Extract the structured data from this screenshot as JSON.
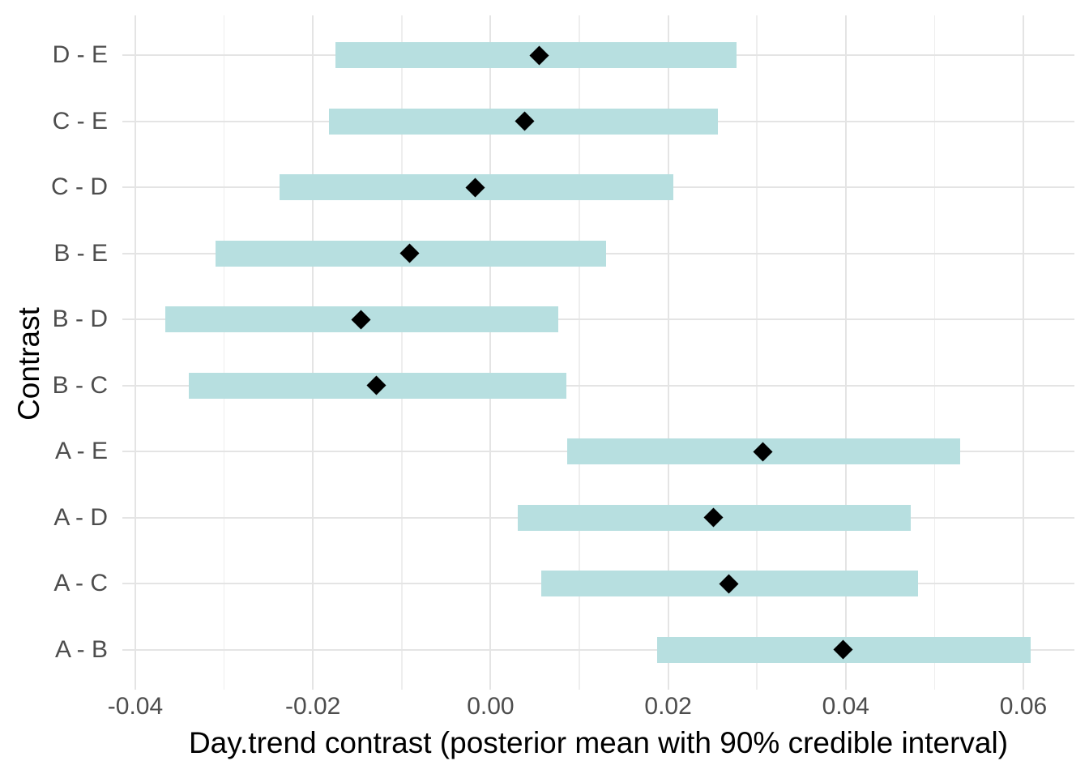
{
  "chart_data": {
    "type": "bar",
    "subtype": "horizontal-interval-pointrange",
    "title": "",
    "xlabel": "Day.trend contrast (posterior mean with 90% credible interval)",
    "ylabel": "Contrast",
    "legend": "none",
    "grid": "on",
    "xlim": [
      -0.0455,
      0.0656
    ],
    "categories": [
      "D - E",
      "C - E",
      "C - D",
      "B - E",
      "B - D",
      "B - C",
      "A - E",
      "A - D",
      "A - C",
      "A - B"
    ],
    "rows": [
      {
        "contrast": "D - E",
        "lower": -0.0175,
        "mean": 0.0055,
        "upper": 0.0277
      },
      {
        "contrast": "C - E",
        "lower": -0.0182,
        "mean": 0.0038,
        "upper": 0.0256
      },
      {
        "contrast": "C - D",
        "lower": -0.0238,
        "mean": -0.0017,
        "upper": 0.0206
      },
      {
        "contrast": "B - E",
        "lower": -0.031,
        "mean": -0.0091,
        "upper": 0.013
      },
      {
        "contrast": "B - D",
        "lower": -0.0366,
        "mean": -0.0146,
        "upper": 0.0076
      },
      {
        "contrast": "B - C",
        "lower": -0.034,
        "mean": -0.0129,
        "upper": 0.0085
      },
      {
        "contrast": "A - E",
        "lower": 0.0086,
        "mean": 0.0307,
        "upper": 0.0529
      },
      {
        "contrast": "A - D",
        "lower": 0.0031,
        "mean": 0.0251,
        "upper": 0.0473
      },
      {
        "contrast": "A - C",
        "lower": 0.0057,
        "mean": 0.0268,
        "upper": 0.0481
      },
      {
        "contrast": "A - B",
        "lower": 0.0188,
        "mean": 0.0397,
        "upper": 0.0608
      }
    ],
    "x_major_ticks": [
      {
        "value": -0.04,
        "label": "-0.04"
      },
      {
        "value": -0.02,
        "label": "-0.02"
      },
      {
        "value": 0.0,
        "label": "0.00"
      },
      {
        "value": 0.02,
        "label": "0.02"
      },
      {
        "value": 0.04,
        "label": "0.04"
      },
      {
        "value": 0.06,
        "label": "0.06"
      }
    ],
    "x_minor_ticks": [
      -0.03,
      -0.01,
      0.01,
      0.03,
      0.05
    ],
    "colors": {
      "bar_fill": "#b7dfe0",
      "point": "#000000",
      "grid_major": "#e4e4e4",
      "grid_minor": "#eeeeee",
      "axis_text": "#4d4d4d",
      "axis_title": "#000000",
      "background": "#ffffff"
    }
  }
}
